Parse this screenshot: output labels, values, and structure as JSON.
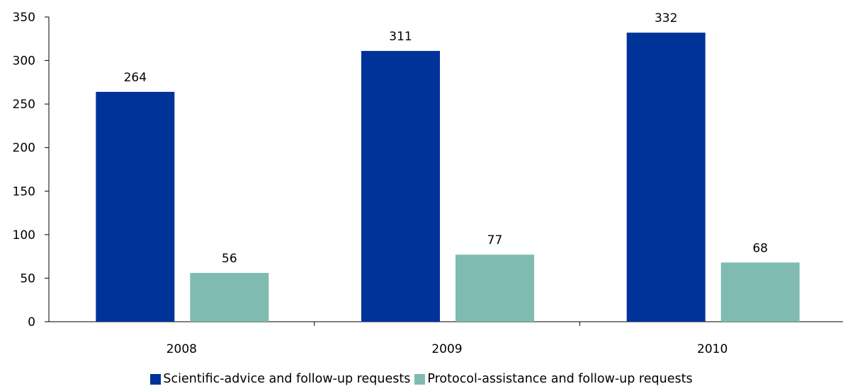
{
  "chart_data": {
    "type": "bar",
    "categories": [
      "2008",
      "2009",
      "2010"
    ],
    "series": [
      {
        "name": "Scientific-advice and follow-up requests",
        "values": [
          264,
          311,
          332
        ],
        "color": "#003399"
      },
      {
        "name": "Protocol-assistance and follow-up requests",
        "values": [
          56,
          77,
          68
        ],
        "color": "#7fbbb1"
      }
    ],
    "ylim": [
      0,
      350
    ],
    "yticks": [
      0,
      50,
      100,
      150,
      200,
      250,
      300,
      350
    ],
    "title": "",
    "xlabel": "",
    "ylabel": "",
    "grid": false,
    "data_labels": true,
    "legend_position": "bottom"
  },
  "legend": {
    "items": [
      {
        "label": "Scientific-advice and follow-up requests",
        "color": "#003399"
      },
      {
        "label": "Protocol-assistance and follow-up requests",
        "color": "#7fbbb1"
      }
    ]
  }
}
